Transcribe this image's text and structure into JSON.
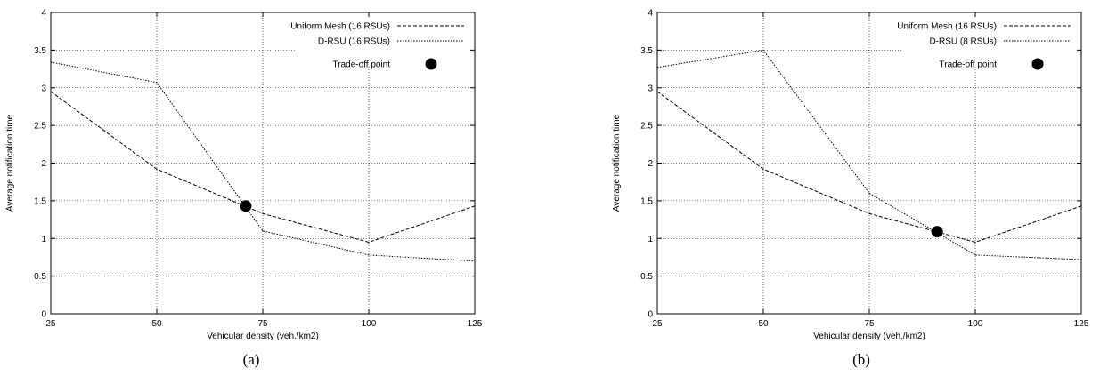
{
  "chart_data": [
    {
      "type": "line",
      "caption": "(a)",
      "xlabel": "Vehicular density (veh./km2)",
      "ylabel": "Average notification time",
      "xlim": [
        25,
        125
      ],
      "ylim": [
        0,
        4
      ],
      "x_ticks": [
        "25",
        "50",
        "75",
        "100",
        "125"
      ],
      "y_ticks": [
        "0",
        "0.5",
        "1",
        "1.5",
        "2",
        "2.5",
        "3",
        "3.5",
        "4"
      ],
      "grid": true,
      "legend": "top-right",
      "series": [
        {
          "name": "Uniform Mesh (16 RSUs)",
          "style": "dashed",
          "x": [
            25,
            50,
            75,
            100,
            125
          ],
          "y": [
            2.95,
            1.92,
            1.33,
            0.95,
            1.43
          ]
        },
        {
          "name": "D-RSU (16 RSUs)",
          "style": "dotted",
          "x": [
            25,
            50,
            75,
            100,
            125
          ],
          "y": [
            3.34,
            3.07,
            1.1,
            0.78,
            0.7
          ]
        }
      ],
      "markers": [
        {
          "name": "Trade-off point",
          "x": 71,
          "y": 1.43
        }
      ]
    },
    {
      "type": "line",
      "caption": "(b)",
      "xlabel": "Vehicular density (veh./km2)",
      "ylabel": "Average notification time",
      "xlim": [
        25,
        125
      ],
      "ylim": [
        0,
        4
      ],
      "x_ticks": [
        "25",
        "50",
        "75",
        "100",
        "125"
      ],
      "y_ticks": [
        "0",
        "0.5",
        "1",
        "1.5",
        "2",
        "2.5",
        "3",
        "3.5",
        "4"
      ],
      "grid": true,
      "legend": "top-right",
      "series": [
        {
          "name": "Uniform Mesh (16 RSUs)",
          "style": "dashed",
          "x": [
            25,
            50,
            75,
            100,
            125
          ],
          "y": [
            2.95,
            1.92,
            1.33,
            0.95,
            1.43
          ]
        },
        {
          "name": "D-RSU (8 RSUs)",
          "style": "dotted",
          "x": [
            25,
            50,
            75,
            100,
            125
          ],
          "y": [
            3.27,
            3.5,
            1.6,
            0.78,
            0.72
          ]
        }
      ],
      "markers": [
        {
          "name": "Trade-off point",
          "x": 91,
          "y": 1.09
        }
      ]
    }
  ]
}
